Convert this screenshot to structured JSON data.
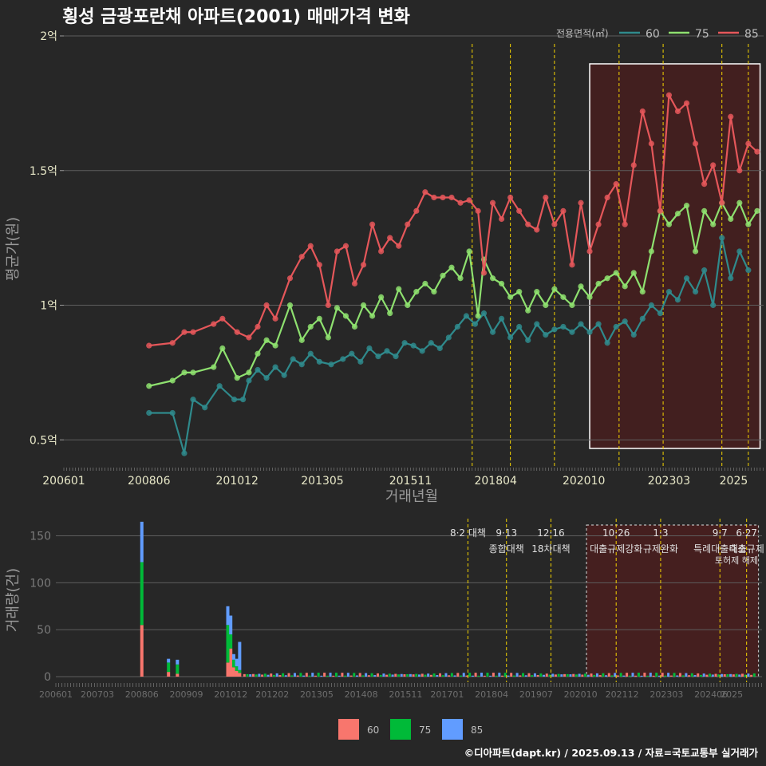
{
  "title": "횡성 금광포란채 아파트(2001) 매매가격 변화",
  "footer": "©디아파트(dapt.kr) / 2025.09.13 / 자료=국토교통부 실거래가",
  "colors": {
    "60": "#2f8a8c",
    "75": "#8ee06f",
    "85": "#e5575a",
    "vol60": "#f8766d",
    "vol75": "#00ba38",
    "vol85": "#619cff",
    "policy": "#f5d400",
    "highlight": "#5a1a1a"
  },
  "chart_data": [
    {
      "type": "line",
      "title": "횡성 금광포란채 아파트(2001) 매매가격 변화",
      "xlabel": "거래년월",
      "ylabel": "평균가(원)",
      "x_ticks": [
        "200601",
        "200806",
        "201012",
        "201305",
        "201511",
        "201804",
        "202010",
        "202303",
        "2025"
      ],
      "y_ticks": [
        "0.5억",
        "1억",
        "1.5억",
        "2억"
      ],
      "ylim": [
        0.4,
        2.0
      ],
      "legend_title": "전용면적(㎡)",
      "legend_position": "top-right",
      "highlight_range": [
        "2020-12",
        "2025-10"
      ],
      "policy_lines": [
        "2017-08",
        "2018-09",
        "2019-12",
        "2021-10",
        "2023-01",
        "2024-09",
        "2025-06"
      ],
      "series": [
        {
          "name": "60",
          "points": [
            [
              "2008-06",
              0.6
            ],
            [
              "2009-02",
              0.6
            ],
            [
              "2009-06",
              0.45
            ],
            [
              "2009-09",
              0.65
            ],
            [
              "2010-01",
              0.62
            ],
            [
              "2010-06",
              0.7
            ],
            [
              "2010-11",
              0.65
            ],
            [
              "2011-02",
              0.65
            ],
            [
              "2011-04",
              0.72
            ],
            [
              "2011-07",
              0.76
            ],
            [
              "2011-10",
              0.73
            ],
            [
              "2012-01",
              0.77
            ],
            [
              "2012-04",
              0.74
            ],
            [
              "2012-07",
              0.8
            ],
            [
              "2012-10",
              0.78
            ],
            [
              "2013-01",
              0.82
            ],
            [
              "2013-04",
              0.79
            ],
            [
              "2013-08",
              0.78
            ],
            [
              "2013-12",
              0.8
            ],
            [
              "2014-03",
              0.82
            ],
            [
              "2014-06",
              0.79
            ],
            [
              "2014-09",
              0.84
            ],
            [
              "2014-12",
              0.81
            ],
            [
              "2015-03",
              0.83
            ],
            [
              "2015-06",
              0.81
            ],
            [
              "2015-09",
              0.86
            ],
            [
              "2015-12",
              0.85
            ],
            [
              "2016-03",
              0.83
            ],
            [
              "2016-06",
              0.86
            ],
            [
              "2016-09",
              0.84
            ],
            [
              "2016-12",
              0.88
            ],
            [
              "2017-03",
              0.92
            ],
            [
              "2017-06",
              0.96
            ],
            [
              "2017-09",
              0.93
            ],
            [
              "2017-12",
              0.97
            ],
            [
              "2018-03",
              0.9
            ],
            [
              "2018-06",
              0.95
            ],
            [
              "2018-09",
              0.88
            ],
            [
              "2018-12",
              0.92
            ],
            [
              "2019-03",
              0.87
            ],
            [
              "2019-06",
              0.93
            ],
            [
              "2019-09",
              0.89
            ],
            [
              "2019-12",
              0.91
            ],
            [
              "2020-03",
              0.92
            ],
            [
              "2020-06",
              0.9
            ],
            [
              "2020-09",
              0.93
            ],
            [
              "2020-12",
              0.9
            ],
            [
              "2021-03",
              0.93
            ],
            [
              "2021-06",
              0.86
            ],
            [
              "2021-09",
              0.92
            ],
            [
              "2021-12",
              0.94
            ],
            [
              "2022-03",
              0.89
            ],
            [
              "2022-06",
              0.95
            ],
            [
              "2022-09",
              1.0
            ],
            [
              "2022-12",
              0.97
            ],
            [
              "2023-03",
              1.05
            ],
            [
              "2023-06",
              1.02
            ],
            [
              "2023-09",
              1.1
            ],
            [
              "2023-12",
              1.05
            ],
            [
              "2024-03",
              1.13
            ],
            [
              "2024-06",
              1.0
            ],
            [
              "2024-09",
              1.25
            ],
            [
              "2024-12",
              1.1
            ],
            [
              "2025-03",
              1.2
            ],
            [
              "2025-06",
              1.13
            ]
          ]
        },
        {
          "name": "75",
          "points": [
            [
              "2008-06",
              0.7
            ],
            [
              "2009-02",
              0.72
            ],
            [
              "2009-06",
              0.75
            ],
            [
              "2009-09",
              0.75
            ],
            [
              "2010-04",
              0.77
            ],
            [
              "2010-07",
              0.84
            ],
            [
              "2010-12",
              0.73
            ],
            [
              "2011-04",
              0.75
            ],
            [
              "2011-07",
              0.82
            ],
            [
              "2011-10",
              0.87
            ],
            [
              "2012-01",
              0.85
            ],
            [
              "2012-06",
              1.0
            ],
            [
              "2012-10",
              0.87
            ],
            [
              "2013-01",
              0.92
            ],
            [
              "2013-04",
              0.95
            ],
            [
              "2013-07",
              0.88
            ],
            [
              "2013-10",
              0.99
            ],
            [
              "2014-01",
              0.96
            ],
            [
              "2014-04",
              0.92
            ],
            [
              "2014-07",
              1.0
            ],
            [
              "2014-10",
              0.96
            ],
            [
              "2015-01",
              1.03
            ],
            [
              "2015-04",
              0.97
            ],
            [
              "2015-07",
              1.06
            ],
            [
              "2015-10",
              1.0
            ],
            [
              "2016-01",
              1.05
            ],
            [
              "2016-04",
              1.08
            ],
            [
              "2016-07",
              1.05
            ],
            [
              "2016-10",
              1.11
            ],
            [
              "2017-01",
              1.14
            ],
            [
              "2017-04",
              1.1
            ],
            [
              "2017-07",
              1.2
            ],
            [
              "2017-10",
              0.96
            ],
            [
              "2017-12",
              1.17
            ],
            [
              "2018-03",
              1.1
            ],
            [
              "2018-06",
              1.08
            ],
            [
              "2018-09",
              1.03
            ],
            [
              "2018-12",
              1.05
            ],
            [
              "2019-03",
              0.98
            ],
            [
              "2019-06",
              1.05
            ],
            [
              "2019-09",
              1.0
            ],
            [
              "2019-12",
              1.06
            ],
            [
              "2020-03",
              1.03
            ],
            [
              "2020-06",
              1.0
            ],
            [
              "2020-09",
              1.07
            ],
            [
              "2020-12",
              1.03
            ],
            [
              "2021-03",
              1.08
            ],
            [
              "2021-06",
              1.1
            ],
            [
              "2021-09",
              1.12
            ],
            [
              "2021-12",
              1.07
            ],
            [
              "2022-03",
              1.12
            ],
            [
              "2022-06",
              1.05
            ],
            [
              "2022-09",
              1.2
            ],
            [
              "2022-12",
              1.35
            ],
            [
              "2023-03",
              1.3
            ],
            [
              "2023-06",
              1.34
            ],
            [
              "2023-09",
              1.37
            ],
            [
              "2023-12",
              1.2
            ],
            [
              "2024-03",
              1.35
            ],
            [
              "2024-06",
              1.3
            ],
            [
              "2024-09",
              1.38
            ],
            [
              "2024-12",
              1.32
            ],
            [
              "2025-03",
              1.38
            ],
            [
              "2025-06",
              1.3
            ],
            [
              "2025-09",
              1.35
            ]
          ]
        },
        {
          "name": "85",
          "points": [
            [
              "2008-06",
              0.85
            ],
            [
              "2009-02",
              0.86
            ],
            [
              "2009-06",
              0.9
            ],
            [
              "2009-09",
              0.9
            ],
            [
              "2010-04",
              0.93
            ],
            [
              "2010-07",
              0.95
            ],
            [
              "2010-12",
              0.9
            ],
            [
              "2011-04",
              0.88
            ],
            [
              "2011-07",
              0.92
            ],
            [
              "2011-10",
              1.0
            ],
            [
              "2012-01",
              0.95
            ],
            [
              "2012-06",
              1.1
            ],
            [
              "2012-10",
              1.18
            ],
            [
              "2013-01",
              1.22
            ],
            [
              "2013-04",
              1.15
            ],
            [
              "2013-07",
              1.0
            ],
            [
              "2013-10",
              1.2
            ],
            [
              "2014-01",
              1.22
            ],
            [
              "2014-04",
              1.08
            ],
            [
              "2014-07",
              1.15
            ],
            [
              "2014-10",
              1.3
            ],
            [
              "2015-01",
              1.2
            ],
            [
              "2015-04",
              1.25
            ],
            [
              "2015-07",
              1.22
            ],
            [
              "2015-10",
              1.3
            ],
            [
              "2016-01",
              1.35
            ],
            [
              "2016-04",
              1.42
            ],
            [
              "2016-07",
              1.4
            ],
            [
              "2016-10",
              1.4
            ],
            [
              "2017-01",
              1.4
            ],
            [
              "2017-04",
              1.38
            ],
            [
              "2017-07",
              1.39
            ],
            [
              "2017-10",
              1.35
            ],
            [
              "2017-12",
              1.12
            ],
            [
              "2018-03",
              1.38
            ],
            [
              "2018-06",
              1.32
            ],
            [
              "2018-09",
              1.4
            ],
            [
              "2018-12",
              1.35
            ],
            [
              "2019-03",
              1.3
            ],
            [
              "2019-06",
              1.28
            ],
            [
              "2019-09",
              1.4
            ],
            [
              "2019-12",
              1.3
            ],
            [
              "2020-03",
              1.35
            ],
            [
              "2020-06",
              1.15
            ],
            [
              "2020-09",
              1.38
            ],
            [
              "2020-12",
              1.2
            ],
            [
              "2021-03",
              1.3
            ],
            [
              "2021-06",
              1.4
            ],
            [
              "2021-09",
              1.45
            ],
            [
              "2021-12",
              1.3
            ],
            [
              "2022-03",
              1.52
            ],
            [
              "2022-06",
              1.72
            ],
            [
              "2022-09",
              1.6
            ],
            [
              "2022-12",
              1.35
            ],
            [
              "2023-03",
              1.78
            ],
            [
              "2023-06",
              1.72
            ],
            [
              "2023-09",
              1.75
            ],
            [
              "2023-12",
              1.6
            ],
            [
              "2024-03",
              1.45
            ],
            [
              "2024-06",
              1.52
            ],
            [
              "2024-09",
              1.38
            ],
            [
              "2024-12",
              1.7
            ],
            [
              "2025-03",
              1.5
            ],
            [
              "2025-06",
              1.6
            ],
            [
              "2025-09",
              1.57
            ]
          ]
        }
      ]
    },
    {
      "type": "bar",
      "stacked": true,
      "xlabel": "",
      "ylabel": "거래량(건)",
      "x_ticks": [
        "200601",
        "200703",
        "200806",
        "200909",
        "201012",
        "201202",
        "201305",
        "201408",
        "201511",
        "201701",
        "201804",
        "201907",
        "202010",
        "202112",
        "202303",
        "202406",
        "2025"
      ],
      "y_ticks": [
        "0",
        "50",
        "100",
        "150"
      ],
      "ylim": [
        0,
        170
      ],
      "legend_position": "bottom",
      "highlight_range": [
        "2020-12",
        "2025-10"
      ],
      "policy_labels": [
        {
          "date": "2017-08",
          "line1": "8·2 대책",
          "line2": ""
        },
        {
          "date": "2018-09",
          "line1": "9·13",
          "line2": "종합대책"
        },
        {
          "date": "2019-12",
          "line1": "12·16",
          "line2": "18차대책"
        },
        {
          "date": "2021-10",
          "line1": "10·26",
          "line2": "대출규제강화"
        },
        {
          "date": "2023-01",
          "line1": "1·3",
          "line2": "규제완화"
        },
        {
          "date": "2024-09",
          "line1": "9·7",
          "line2": "특례대출축소"
        },
        {
          "date": "2025-06",
          "line1": "6·27",
          "line2": "대출규제"
        }
      ],
      "policy_extra": "토허제 해제",
      "series": [
        {
          "name": "60",
          "bars": [
            [
              "2008-06",
              55
            ],
            [
              "2009-03",
              5
            ],
            [
              "2009-06",
              3
            ],
            [
              "2010-11",
              15
            ],
            [
              "2010-12",
              30
            ],
            [
              "2011-01",
              10
            ],
            [
              "2011-02",
              6
            ],
            [
              "2011-03",
              4
            ]
          ]
        },
        {
          "name": "75",
          "bars": [
            [
              "2008-06",
              67
            ],
            [
              "2009-03",
              10
            ],
            [
              "2009-06",
              10
            ],
            [
              "2010-11",
              40
            ],
            [
              "2010-12",
              15
            ],
            [
              "2011-01",
              8
            ],
            [
              "2011-02",
              5
            ],
            [
              "2011-03",
              3
            ]
          ]
        },
        {
          "name": "85",
          "bars": [
            [
              "2008-06",
              43
            ],
            [
              "2009-03",
              4
            ],
            [
              "2009-06",
              5
            ],
            [
              "2010-11",
              20
            ],
            [
              "2010-12",
              20
            ],
            [
              "2011-01",
              6
            ],
            [
              "2011-02",
              8
            ],
            [
              "2011-03",
              30
            ]
          ]
        }
      ]
    }
  ]
}
